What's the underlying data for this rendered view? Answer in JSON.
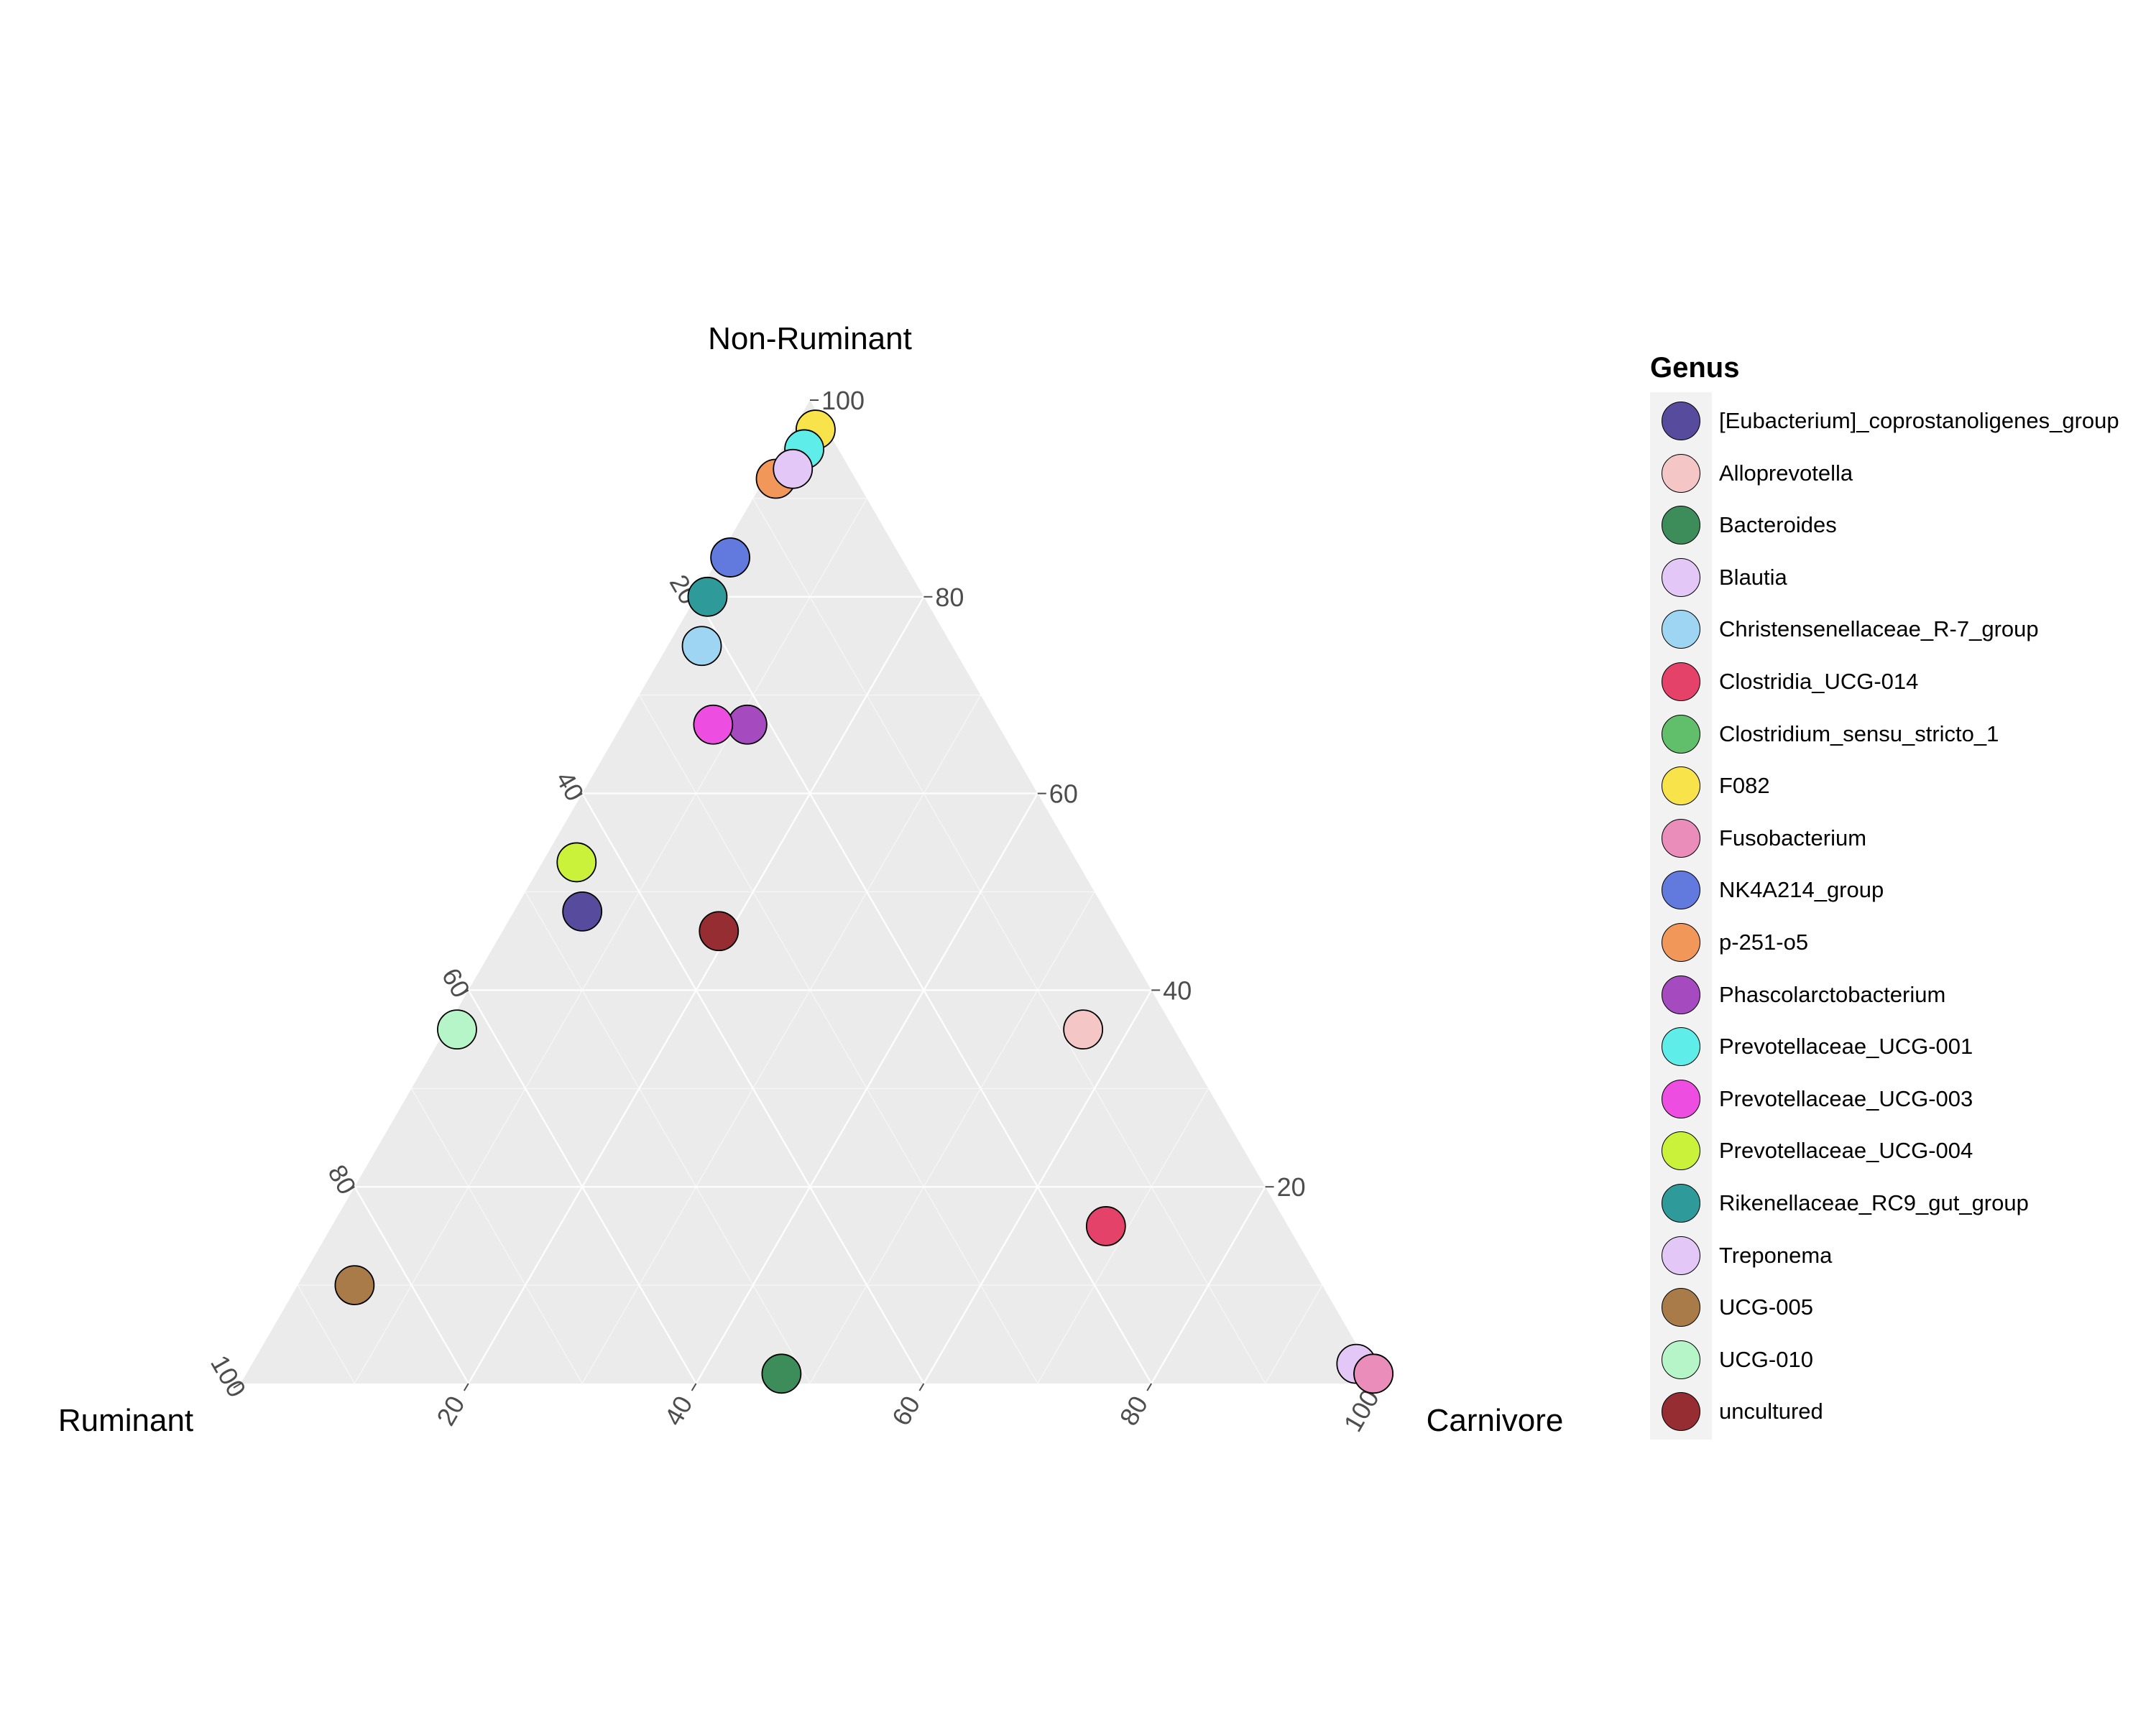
{
  "chart_data": {
    "type": "ternary-scatter",
    "axes": {
      "top": "Non-Ruminant",
      "left": "Ruminant",
      "right": "Carnivore"
    },
    "ticks": [
      20,
      40,
      60,
      80,
      100
    ],
    "grid": true,
    "legend": {
      "title": "Genus",
      "placement": "right"
    },
    "points": [
      {
        "genus": "[Eubacterium]_coprostanoligenes_group",
        "color": "#574B9D",
        "non_ruminant": 48,
        "ruminant": 46,
        "carnivore": 6
      },
      {
        "genus": "Alloprevotella",
        "color": "#F4C6C6",
        "non_ruminant": 36,
        "ruminant": 8,
        "carnivore": 56
      },
      {
        "genus": "Bacteroides",
        "color": "#3C8D5A",
        "non_ruminant": 1,
        "ruminant": 52,
        "carnivore": 47
      },
      {
        "genus": "Blautia",
        "color": "#E3C8F7",
        "non_ruminant": 2,
        "ruminant": 1,
        "carnivore": 97
      },
      {
        "genus": "Christensenellaceae_R-7_group",
        "color": "#9ED5F2",
        "non_ruminant": 75,
        "ruminant": 22,
        "carnivore": 3
      },
      {
        "genus": "Clostridia_UCG-014",
        "color": "#E5426A",
        "non_ruminant": 16,
        "ruminant": 16,
        "carnivore": 68
      },
      {
        "genus": "Clostridium_sensu_stricto_1",
        "color": "#61BF6B",
        "non_ruminant": 1,
        "ruminant": 0,
        "carnivore": 99
      },
      {
        "genus": "F082",
        "color": "#F8E34A",
        "non_ruminant": 97,
        "ruminant": 1,
        "carnivore": 2
      },
      {
        "genus": "Fusobacterium",
        "color": "#EA8DBB",
        "non_ruminant": 1,
        "ruminant": 0,
        "carnivore": 99
      },
      {
        "genus": "NK4A214_group",
        "color": "#6279DD",
        "non_ruminant": 84,
        "ruminant": 15,
        "carnivore": 1
      },
      {
        "genus": "p-251-o5",
        "color": "#F2975A",
        "non_ruminant": 92,
        "ruminant": 7,
        "carnivore": 1
      },
      {
        "genus": "Phascolarctobacterium",
        "color": "#A54ABF",
        "non_ruminant": 67,
        "ruminant": 22,
        "carnivore": 11
      },
      {
        "genus": "Prevotellaceae_UCG-001",
        "color": "#5EEDE8",
        "non_ruminant": 95,
        "ruminant": 3,
        "carnivore": 2
      },
      {
        "genus": "Prevotellaceae_UCG-003",
        "color": "#EE4DE2",
        "non_ruminant": 67,
        "ruminant": 25,
        "carnivore": 8
      },
      {
        "genus": "Prevotellaceae_UCG-004",
        "color": "#CBF23A",
        "non_ruminant": 53,
        "ruminant": 44,
        "carnivore": 3
      },
      {
        "genus": "Rikenellaceae_RC9_gut_group",
        "color": "#2F9A9A",
        "non_ruminant": 80,
        "ruminant": 19,
        "carnivore": 1
      },
      {
        "genus": "Treponema",
        "color": "#E3C8F7",
        "non_ruminant": 93,
        "ruminant": 5,
        "carnivore": 2
      },
      {
        "genus": "UCG-005",
        "color": "#A87B48",
        "non_ruminant": 10,
        "ruminant": 85,
        "carnivore": 5
      },
      {
        "genus": "UCG-010",
        "color": "#B5F5C8",
        "non_ruminant": 36,
        "ruminant": 63,
        "carnivore": 1
      },
      {
        "genus": "uncultured",
        "color": "#962D32",
        "non_ruminant": 46,
        "ruminant": 35,
        "carnivore": 19
      }
    ]
  },
  "legend_items": [
    {
      "label": "[Eubacterium]_coprostanoligenes_group",
      "color": "#574B9D"
    },
    {
      "label": "Alloprevotella",
      "color": "#F4C6C6"
    },
    {
      "label": "Bacteroides",
      "color": "#3C8D5A"
    },
    {
      "label": "Blautia",
      "color": "#E3C8F7"
    },
    {
      "label": "Christensenellaceae_R-7_group",
      "color": "#9ED5F2"
    },
    {
      "label": "Clostridia_UCG-014",
      "color": "#E5426A"
    },
    {
      "label": "Clostridium_sensu_stricto_1",
      "color": "#61BF6B"
    },
    {
      "label": "F082",
      "color": "#F8E34A"
    },
    {
      "label": "Fusobacterium",
      "color": "#EA8DBB"
    },
    {
      "label": "NK4A214_group",
      "color": "#6279DD"
    },
    {
      "label": "p-251-o5",
      "color": "#F2975A"
    },
    {
      "label": "Phascolarctobacterium",
      "color": "#A54ABF"
    },
    {
      "label": "Prevotellaceae_UCG-001",
      "color": "#5EEDE8"
    },
    {
      "label": "Prevotellaceae_UCG-003",
      "color": "#EE4DE2"
    },
    {
      "label": "Prevotellaceae_UCG-004",
      "color": "#CBF23A"
    },
    {
      "label": "Rikenellaceae_RC9_gut_group",
      "color": "#2F9A9A"
    },
    {
      "label": "Treponema",
      "color": "#E3C8F7"
    },
    {
      "label": "UCG-005",
      "color": "#A87B48"
    },
    {
      "label": "UCG-010",
      "color": "#B5F5C8"
    },
    {
      "label": "uncultured",
      "color": "#962D32"
    }
  ]
}
